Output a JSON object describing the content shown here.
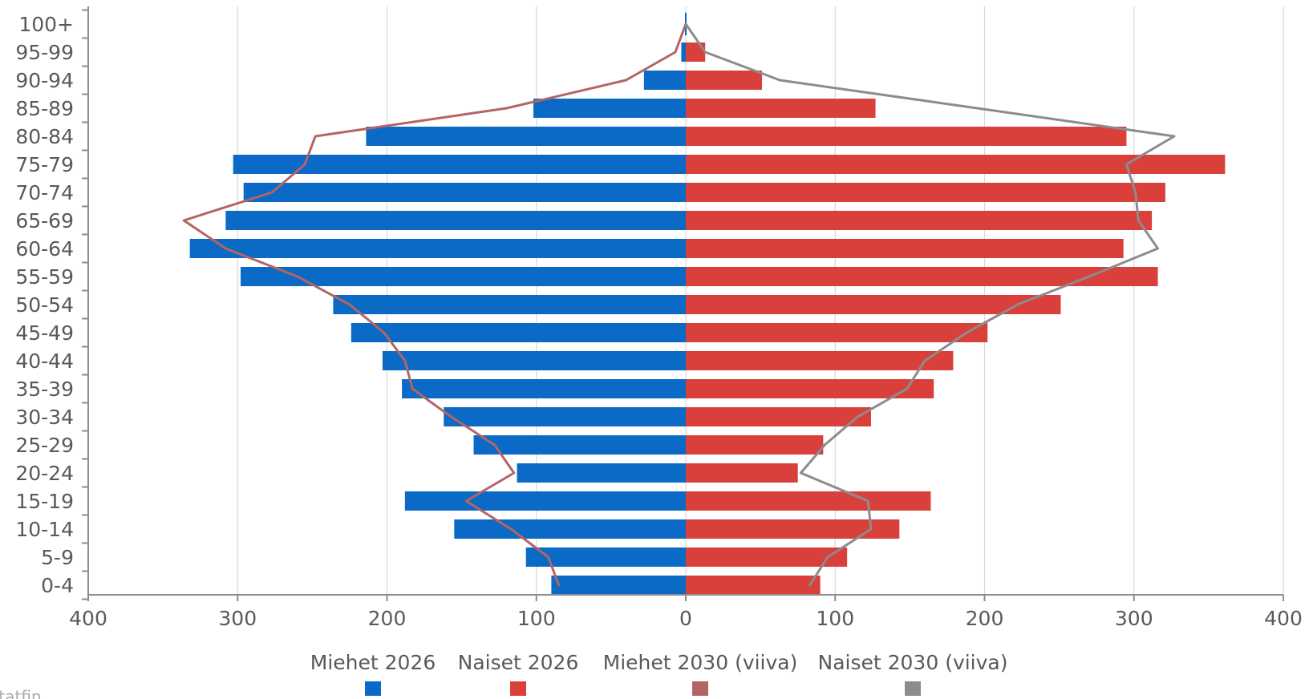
{
  "footer": {
    "source_text": "statfin"
  },
  "colors": {
    "men_2026": "#0a6ac5",
    "women_2026": "#d9403c",
    "men_2030": "#b56464",
    "women_2030": "#8c8c8c",
    "grid": "#d9d9d9",
    "axis": "#8c8c8c"
  },
  "chart_data": {
    "type": "bar",
    "orientation": "horizontal",
    "layout": "population-pyramid",
    "title": "",
    "xlabel": "",
    "ylabel": "",
    "xlim": [
      -400,
      400
    ],
    "x_ticks": [
      -400,
      -300,
      -200,
      -100,
      0,
      100,
      200,
      300,
      400
    ],
    "x_tick_labels": [
      "400",
      "300",
      "200",
      "100",
      "0",
      "100",
      "200",
      "300",
      "400"
    ],
    "grid": true,
    "legend_position": "bottom",
    "categories": [
      "100+",
      "95-99",
      "90-94",
      "85-89",
      "80-84",
      "75-79",
      "70-74",
      "65-69",
      "60-64",
      "55-59",
      "50-54",
      "45-49",
      "40-44",
      "35-39",
      "30-34",
      "25-29",
      "20-24",
      "15-19",
      "10-14",
      "5-9",
      "0-4"
    ],
    "series": [
      {
        "name": "Miehet 2026",
        "kind": "bar",
        "side": "left",
        "color": "#0a6ac5",
        "values": [
          0,
          3,
          28,
          102,
          214,
          303,
          296,
          308,
          332,
          298,
          236,
          224,
          203,
          190,
          162,
          142,
          113,
          188,
          155,
          107,
          90
        ]
      },
      {
        "name": "Naiset 2026",
        "kind": "bar",
        "side": "right",
        "color": "#d9403c",
        "values": [
          0,
          13,
          51,
          127,
          295,
          361,
          321,
          312,
          293,
          316,
          251,
          202,
          179,
          166,
          124,
          92,
          75,
          164,
          143,
          108,
          90
        ]
      },
      {
        "name": "Miehet 2030 (viiva)",
        "kind": "line",
        "side": "left",
        "color": "#b56464",
        "values": [
          0,
          7,
          40,
          120,
          248,
          255,
          277,
          336,
          308,
          260,
          225,
          202,
          188,
          183,
          157,
          128,
          115,
          147,
          117,
          92,
          85
        ]
      },
      {
        "name": "Naiset 2030 (viiva)",
        "kind": "line",
        "side": "right",
        "color": "#8c8c8c",
        "values": [
          0,
          13,
          63,
          195,
          327,
          295,
          301,
          303,
          316,
          270,
          222,
          188,
          160,
          148,
          115,
          93,
          77,
          122,
          124,
          95,
          83
        ]
      }
    ]
  }
}
